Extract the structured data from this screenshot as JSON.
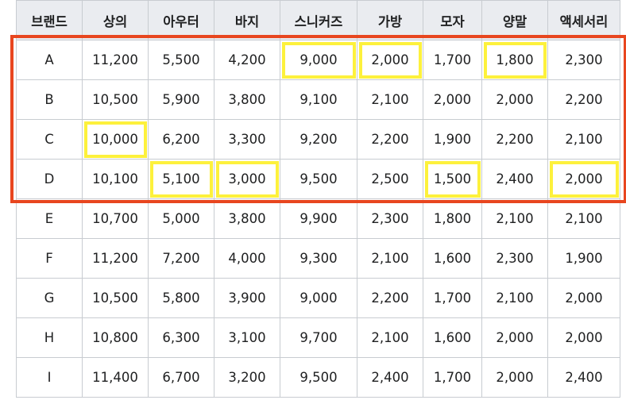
{
  "headers": [
    "브랜드",
    "상의",
    "아우터",
    "바지",
    "스니커즈",
    "가방",
    "모자",
    "양말",
    "액세서리"
  ],
  "rows": [
    [
      "A",
      "11,200",
      "5,500",
      "4,200",
      "9,000",
      "2,000",
      "1,700",
      "1,800",
      "2,300"
    ],
    [
      "B",
      "10,500",
      "5,900",
      "3,800",
      "9,100",
      "2,100",
      "2,000",
      "2,000",
      "2,200"
    ],
    [
      "C",
      "10,000",
      "6,200",
      "3,300",
      "9,200",
      "2,200",
      "1,900",
      "2,200",
      "2,100"
    ],
    [
      "D",
      "10,100",
      "5,100",
      "3,000",
      "9,500",
      "2,500",
      "1,500",
      "2,400",
      "2,000"
    ],
    [
      "E",
      "10,700",
      "5,000",
      "3,800",
      "9,900",
      "2,300",
      "1,800",
      "2,100",
      "2,100"
    ],
    [
      "F",
      "11,200",
      "7,200",
      "4,000",
      "9,300",
      "2,100",
      "1,600",
      "2,300",
      "1,900"
    ],
    [
      "G",
      "10,500",
      "5,800",
      "3,900",
      "9,000",
      "2,200",
      "1,700",
      "2,100",
      "2,000"
    ],
    [
      "H",
      "10,800",
      "6,300",
      "3,100",
      "9,700",
      "2,100",
      "1,600",
      "2,000",
      "2,000"
    ],
    [
      "I",
      "11,400",
      "6,700",
      "3,200",
      "9,500",
      "2,400",
      "1,700",
      "2,000",
      "2,400"
    ]
  ],
  "highlight_color": "#fdf13c",
  "group_frame_color": "#e8461f",
  "highlighted_cells": [
    {
      "row": "A",
      "column": "스니커즈"
    },
    {
      "row": "A",
      "column": "가방"
    },
    {
      "row": "A",
      "column": "양말"
    },
    {
      "row": "C",
      "column": "상의"
    },
    {
      "row": "D",
      "column": "아우터"
    },
    {
      "row": "D",
      "column": "바지"
    },
    {
      "row": "D",
      "column": "모자"
    },
    {
      "row": "D",
      "column": "액세서리"
    }
  ],
  "framed_rows": [
    "A",
    "B",
    "C",
    "D"
  ]
}
